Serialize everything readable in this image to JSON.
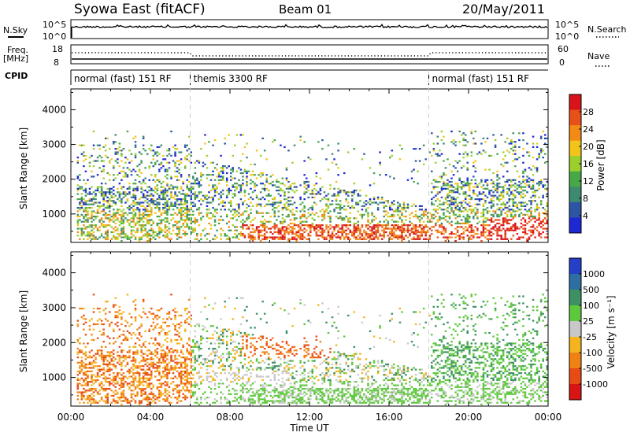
{
  "header": {
    "station": "Syowa East (fitACF)",
    "beam": "Beam 01",
    "date": "20/May/2011"
  },
  "top_panels": {
    "nsky_label": "N.Sky",
    "nsky_ticks": [
      "10^5",
      "10^0"
    ],
    "nsearch_label": "N.Search",
    "nsearch_ticks": [
      "10^5",
      "10^0"
    ],
    "freq_label": "Freq.",
    "freq_unit": "[MHz]",
    "freq_ticks": [
      "18",
      "8"
    ],
    "nave_label": "Nave",
    "nave_ticks": [
      "60",
      "0"
    ],
    "cpid_label": "CPID",
    "cpid_segments": [
      {
        "label": "normal (fast) 151 RF",
        "start": 0,
        "end": 6
      },
      {
        "label": "themis 3300 RF",
        "start": 6,
        "end": 18
      },
      {
        "label": "normal (fast) 151 RF",
        "start": 18,
        "end": 24
      }
    ]
  },
  "colorbars": {
    "power": {
      "label": "Power [dB]",
      "ticks": [
        "28",
        "24",
        "20",
        "16",
        "12",
        "8",
        "4"
      ],
      "colors": [
        "#1e28d2",
        "#2e55a4",
        "#3d8a6e",
        "#47a848",
        "#9ccf2c",
        "#f2c41a",
        "#f28a14",
        "#e8501a",
        "#d8141a"
      ]
    },
    "velocity": {
      "label": "Velocity [m s⁻¹]",
      "ticks": [
        "1000",
        "500",
        "100",
        "25",
        "-25",
        "-100",
        "-500",
        "-1000"
      ],
      "colors": [
        "#2440c8",
        "#2e6ea0",
        "#3c9064",
        "#5ec83c",
        "#c8c8c8",
        "#f4b41e",
        "#f08214",
        "#e84c14",
        "#d81414"
      ]
    }
  },
  "axes": {
    "ylabel": "Slant Range [km]",
    "xlabel": "Time UT",
    "yticks": [
      "1000",
      "2000",
      "3000",
      "4000"
    ],
    "xticks": [
      "00:00",
      "04:00",
      "08:00",
      "12:00",
      "16:00",
      "20:00",
      "00:00"
    ]
  },
  "chart_data": [
    {
      "type": "heatmap",
      "title": "Power",
      "xlabel": "Time UT",
      "ylabel": "Slant Range [km]",
      "xlim": [
        0,
        24
      ],
      "ylim": [
        180,
        4600
      ],
      "colorbar_label": "Power [dB]",
      "colorbar_ticks": [
        28,
        24,
        20,
        16,
        12,
        8,
        4
      ],
      "regions": [
        {
          "x": [
            0.4,
            5.5
          ],
          "y": [
            250,
            3000
          ],
          "level": "mixed"
        },
        {
          "x": [
            6.0,
            18.0
          ],
          "y": [
            350,
            2400
          ],
          "level": "mixed"
        },
        {
          "x": [
            8.5,
            18.0
          ],
          "y": [
            400,
            700
          ],
          "level": "high"
        },
        {
          "x": [
            18.0,
            24.0
          ],
          "y": [
            300,
            3400
          ],
          "level": "mixed"
        },
        {
          "x": [
            21.0,
            24.0
          ],
          "y": [
            300,
            900
          ],
          "level": "high"
        }
      ]
    },
    {
      "type": "heatmap",
      "title": "Velocity",
      "xlabel": "Time UT",
      "ylabel": "Slant Range [km]",
      "xlim": [
        0,
        24
      ],
      "ylim": [
        180,
        4600
      ],
      "colorbar_label": "Velocity [m s⁻¹]",
      "colorbar_ticks": [
        1000,
        500,
        100,
        25,
        -25,
        -100,
        -500,
        -1000
      ],
      "regions": [
        {
          "x": [
            0.4,
            5.5
          ],
          "y": [
            250,
            3000
          ],
          "level": "negative"
        },
        {
          "x": [
            6.0,
            11.0
          ],
          "y": [
            800,
            1200
          ],
          "level": "near-zero"
        },
        {
          "x": [
            6.0,
            18.0
          ],
          "y": [
            400,
            900
          ],
          "level": "positive"
        },
        {
          "x": [
            8.5,
            13.0
          ],
          "y": [
            1500,
            2200
          ],
          "level": "negative"
        },
        {
          "x": [
            18.0,
            24.0
          ],
          "y": [
            400,
            2200
          ],
          "level": "positive"
        }
      ]
    }
  ]
}
